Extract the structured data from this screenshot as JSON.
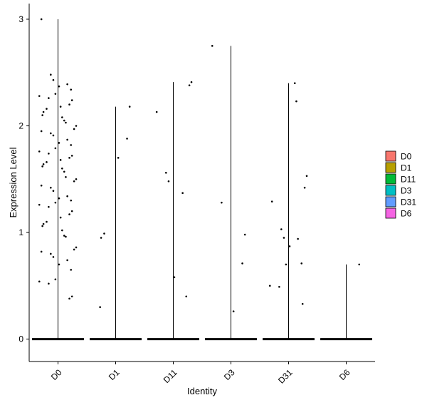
{
  "chart_data": {
    "type": "violin",
    "xlabel": "Identity",
    "ylabel": "Expression Level",
    "ylim": [
      -0.15,
      3.1
    ],
    "yticks": [
      "0",
      "1",
      "2",
      "3"
    ],
    "ytick_values": [
      0,
      1,
      2,
      3
    ],
    "categories": [
      "D0",
      "D1",
      "D11",
      "D3",
      "D31",
      "D6"
    ],
    "max_values": [
      3.0,
      2.18,
      2.41,
      2.75,
      2.4,
      0.7
    ],
    "legend": {
      "position": "right",
      "entries": [
        {
          "label": "D0",
          "color": "#F8766D"
        },
        {
          "label": "D1",
          "color": "#B79F00"
        },
        {
          "label": "D11",
          "color": "#00BA38"
        },
        {
          "label": "D3",
          "color": "#00BFC4"
        },
        {
          "label": "D31",
          "color": "#619CFF"
        },
        {
          "label": "D6",
          "color": "#F564E3"
        }
      ]
    },
    "points": [
      {
        "group": "D0",
        "values": [
          3.0,
          2.48,
          2.43,
          2.39,
          2.37,
          2.34,
          2.3,
          2.28,
          2.26,
          2.24,
          2.2,
          2.18,
          2.16,
          2.13,
          2.1,
          2.08,
          2.05,
          2.03,
          2.0,
          1.97,
          1.95,
          1.93,
          1.91,
          1.87,
          1.84,
          1.82,
          1.79,
          1.76,
          1.74,
          1.72,
          1.7,
          1.68,
          1.66,
          1.64,
          1.62,
          1.6,
          1.57,
          1.52,
          1.5,
          1.48,
          1.44,
          1.42,
          1.39,
          1.34,
          1.32,
          1.3,
          1.28,
          1.26,
          1.24,
          1.2,
          1.17,
          1.14,
          1.1,
          1.08,
          1.06,
          1.02,
          0.97,
          0.96,
          0.86,
          0.84,
          0.82,
          0.8,
          0.77,
          0.74,
          0.7,
          0.65,
          0.56,
          0.54,
          0.52,
          0.4,
          0.38
        ]
      },
      {
        "group": "D1",
        "values": [
          2.18,
          1.88,
          1.7,
          0.99,
          0.95,
          0.3
        ]
      },
      {
        "group": "D11",
        "values": [
          2.41,
          2.38,
          2.13,
          1.56,
          1.48,
          1.37,
          0.58,
          0.4
        ]
      },
      {
        "group": "D3",
        "values": [
          2.75,
          1.28,
          0.98,
          0.71,
          0.26
        ]
      },
      {
        "group": "D31",
        "values": [
          2.4,
          2.23,
          1.53,
          1.42,
          1.29,
          1.03,
          0.95,
          0.94,
          0.87,
          0.71,
          0.7,
          0.5,
          0.49,
          0.33
        ]
      },
      {
        "group": "D6",
        "values": [
          0.7
        ]
      }
    ]
  }
}
